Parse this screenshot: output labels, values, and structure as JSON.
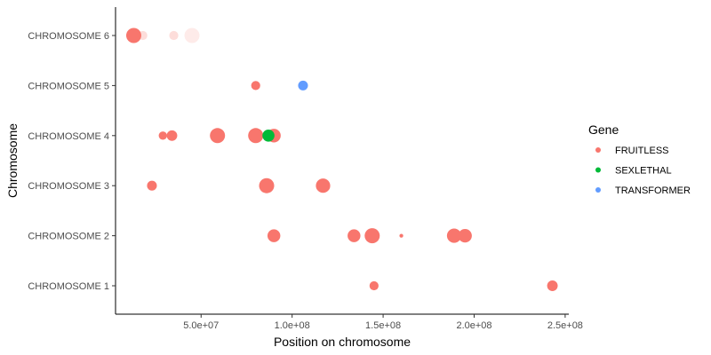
{
  "chart_data": {
    "type": "scatter",
    "xlabel": "Position on chromosome",
    "ylabel": "Chromosome",
    "xlim": [
      3000000,
      252000000
    ],
    "x_ticks": [
      {
        "value": 50000000,
        "label": "5.0e+07"
      },
      {
        "value": 100000000,
        "label": "1.0e+08"
      },
      {
        "value": 150000000,
        "label": "1.5e+08"
      },
      {
        "value": 200000000,
        "label": "2.0e+08"
      },
      {
        "value": 250000000,
        "label": "2.5e+08"
      }
    ],
    "categories": [
      "CHROMOSOME 1",
      "CHROMOSOME 2",
      "CHROMOSOME 3",
      "CHROMOSOME 4",
      "CHROMOSOME 5",
      "CHROMOSOME 6"
    ],
    "legend": {
      "title": "Gene",
      "position": "right",
      "entries": [
        {
          "name": "FRUITLESS",
          "color": "#F8766D"
        },
        {
          "name": "SEXLETHAL",
          "color": "#00BA38"
        },
        {
          "name": "TRANSFORMER",
          "color": "#619CFF"
        }
      ]
    },
    "grid": false,
    "series": [
      {
        "name": "FRUITLESS",
        "color": "#F8766D",
        "points": [
          {
            "x": 13000000,
            "y": "CHROMOSOME 6",
            "size": 1.0,
            "alpha": 1.0
          },
          {
            "x": 18000000,
            "y": "CHROMOSOME 6",
            "size": 0.6,
            "alpha": 0.25
          },
          {
            "x": 35000000,
            "y": "CHROMOSOME 6",
            "size": 0.6,
            "alpha": 0.25
          },
          {
            "x": 45000000,
            "y": "CHROMOSOME 6",
            "size": 1.0,
            "alpha": 0.15
          },
          {
            "x": 80000000,
            "y": "CHROMOSOME 5",
            "size": 0.6,
            "alpha": 1.0
          },
          {
            "x": 29000000,
            "y": "CHROMOSOME 4",
            "size": 0.55,
            "alpha": 1.0
          },
          {
            "x": 34000000,
            "y": "CHROMOSOME 4",
            "size": 0.7,
            "alpha": 1.0
          },
          {
            "x": 59000000,
            "y": "CHROMOSOME 4",
            "size": 1.0,
            "alpha": 1.0
          },
          {
            "x": 80000000,
            "y": "CHROMOSOME 4",
            "size": 1.0,
            "alpha": 1.0
          },
          {
            "x": 90000000,
            "y": "CHROMOSOME 4",
            "size": 0.9,
            "alpha": 1.0
          },
          {
            "x": 23000000,
            "y": "CHROMOSOME 3",
            "size": 0.65,
            "alpha": 1.0
          },
          {
            "x": 86000000,
            "y": "CHROMOSOME 3",
            "size": 1.0,
            "alpha": 1.0
          },
          {
            "x": 117000000,
            "y": "CHROMOSOME 3",
            "size": 0.95,
            "alpha": 1.0
          },
          {
            "x": 90000000,
            "y": "CHROMOSOME 2",
            "size": 0.85,
            "alpha": 1.0
          },
          {
            "x": 134000000,
            "y": "CHROMOSOME 2",
            "size": 0.85,
            "alpha": 1.0
          },
          {
            "x": 144000000,
            "y": "CHROMOSOME 2",
            "size": 1.0,
            "alpha": 1.0
          },
          {
            "x": 160000000,
            "y": "CHROMOSOME 2",
            "size": 0.25,
            "alpha": 1.0
          },
          {
            "x": 189000000,
            "y": "CHROMOSOME 2",
            "size": 0.95,
            "alpha": 1.0
          },
          {
            "x": 195000000,
            "y": "CHROMOSOME 2",
            "size": 0.9,
            "alpha": 1.0
          },
          {
            "x": 145000000,
            "y": "CHROMOSOME 1",
            "size": 0.6,
            "alpha": 1.0
          },
          {
            "x": 243000000,
            "y": "CHROMOSOME 1",
            "size": 0.7,
            "alpha": 1.0
          }
        ]
      },
      {
        "name": "SEXLETHAL",
        "color": "#00BA38",
        "points": [
          {
            "x": 87000000,
            "y": "CHROMOSOME 4",
            "size": 0.8,
            "alpha": 1.0
          }
        ]
      },
      {
        "name": "TRANSFORMER",
        "color": "#619CFF",
        "points": [
          {
            "x": 106000000,
            "y": "CHROMOSOME 5",
            "size": 0.65,
            "alpha": 1.0
          }
        ]
      }
    ]
  }
}
